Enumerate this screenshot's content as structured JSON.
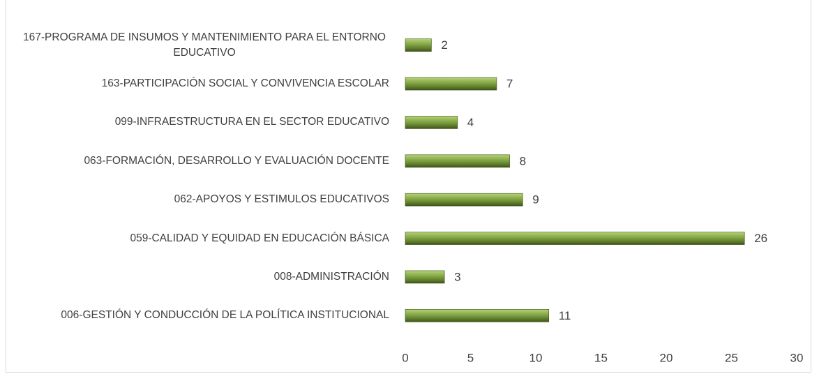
{
  "chart_data": {
    "type": "bar",
    "orientation": "horizontal",
    "categories": [
      "167-PROGRAMA DE INSUMOS Y MANTENIMIENTO PARA EL ENTORNO EDUCATIVO",
      "163-PARTICIPACIÓN SOCIAL Y CONVIVENCIA ESCOLAR",
      "099-INFRAESTRUCTURA EN EL SECTOR EDUCATIVO",
      "063-FORMACIÓN, DESARROLLO Y EVALUACIÓN DOCENTE",
      "062-APOYOS Y ESTIMULOS EDUCATIVOS",
      "059-CALIDAD Y EQUIDAD EN EDUCACIÓN BÁSICA",
      "008-ADMINISTRACIÓN",
      "006-GESTIÓN Y CONDUCCIÓN DE LA POLÍTICA INSTITUCIONAL"
    ],
    "values": [
      2,
      7,
      4,
      8,
      9,
      26,
      3,
      11
    ],
    "color": "#77933c",
    "xlim": [
      0,
      30
    ],
    "xticks": [
      0,
      5,
      10,
      15,
      20,
      25,
      30
    ],
    "grid": false
  }
}
